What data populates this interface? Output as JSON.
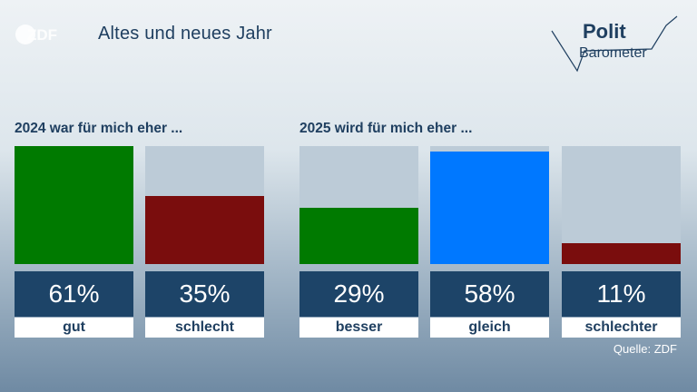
{
  "header": {
    "logo": "ZDF",
    "title": "Altes und neues Jahr",
    "brand_line1": "Polit",
    "brand_line2": "Barometer"
  },
  "colors": {
    "green": "#007a00",
    "red": "#7a0d0d",
    "blue": "#0078ff",
    "track": "#bccbd7",
    "value_box": "#1d4468"
  },
  "chart_data": [
    {
      "type": "bar",
      "title": "2024 war für mich eher ...",
      "categories": [
        "gut",
        "schlecht"
      ],
      "values": [
        61,
        35
      ],
      "value_labels": [
        "61%",
        "35%"
      ],
      "colors": [
        "#007a00",
        "#7a0d0d"
      ],
      "ylim": [
        0,
        61
      ]
    },
    {
      "type": "bar",
      "title": "2025 wird für mich eher ...",
      "categories": [
        "besser",
        "gleich",
        "schlechter"
      ],
      "values": [
        29,
        58,
        11
      ],
      "value_labels": [
        "29%",
        "58%",
        "11%"
      ],
      "colors": [
        "#007a00",
        "#0078ff",
        "#7a0d0d"
      ],
      "ylim": [
        0,
        61
      ]
    }
  ],
  "footer": {
    "source": "Quelle: ZDF"
  }
}
